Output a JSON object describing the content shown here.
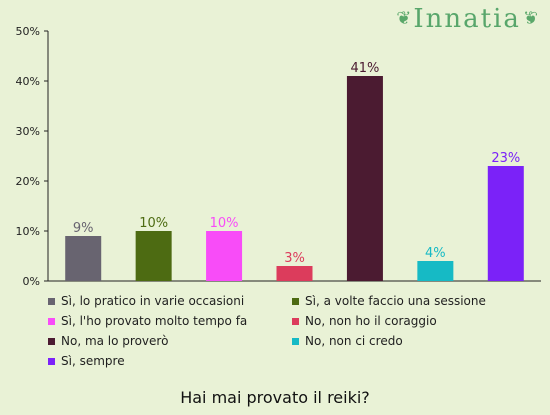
{
  "brand": {
    "name": "Innatia"
  },
  "chart_data": {
    "type": "bar",
    "title": "Hai mai provato il reiki?",
    "categories": [
      "Sì, lo pratico in varie occasioni",
      "Sì, a volte faccio una sessione",
      "Sì, l'ho provato molto tempo fa",
      "No, non ho il coraggio",
      "No, ma lo proverò",
      "No, non ci credo",
      "Sì, sempre"
    ],
    "values": [
      9,
      10,
      10,
      3,
      41,
      4,
      23
    ],
    "value_labels": [
      "9%",
      "10%",
      "10%",
      "3%",
      "41%",
      "4%",
      "23%"
    ],
    "colors": [
      "#686470",
      "#4d6b12",
      "#f84cf8",
      "#dc3c5c",
      "#4b1b31",
      "#16bac5",
      "#7b22f8"
    ],
    "ylim": [
      0,
      50
    ],
    "yticks": [
      0,
      10,
      20,
      30,
      40,
      50
    ],
    "ytick_labels": [
      "0%",
      "10%",
      "20%",
      "30%",
      "40%",
      "50%"
    ],
    "grid": false,
    "legend_position": "bottom"
  }
}
